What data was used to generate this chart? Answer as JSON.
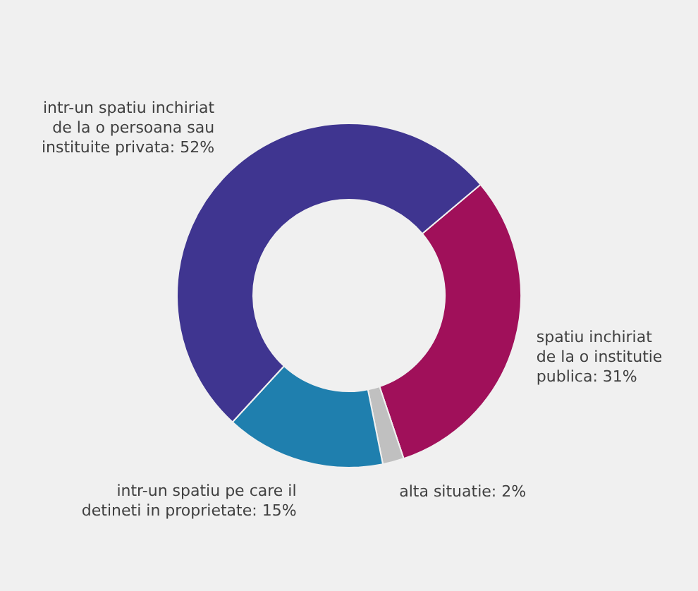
{
  "chart_data": {
    "type": "donut",
    "categories": [
      "spatiu inchiriat de la o institutie publica",
      "alta situatie",
      "intr-un spatiu pe care il detineti in proprietate",
      "intr-un spatiu inchiriat de la o persoana sau instituite privata"
    ],
    "values": [
      31,
      2,
      15,
      52
    ],
    "value_labels": [
      "31%",
      "2%",
      "15%",
      "52%"
    ],
    "colors": [
      "#a0105a",
      "#c0c0c0",
      "#1f7fae",
      "#3f3590"
    ]
  }
}
